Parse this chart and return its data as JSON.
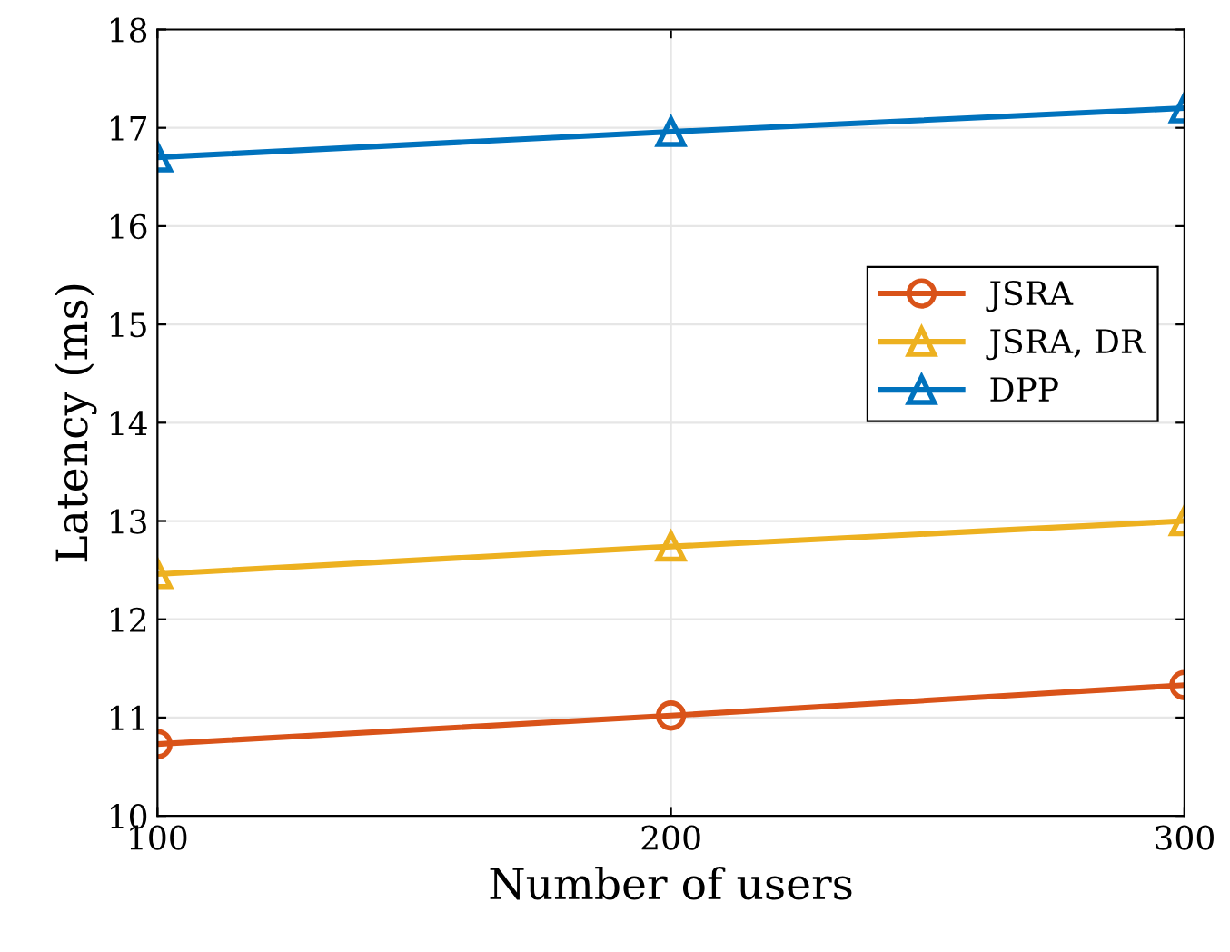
{
  "chart_data": {
    "type": "line",
    "xlabel": "Number of users",
    "ylabel": "Latency (ms)",
    "x": [
      100,
      200,
      300
    ],
    "series": [
      {
        "name": "JSRA",
        "color": "#d95319",
        "values": [
          10.73,
          11.02,
          11.33
        ],
        "marker": "circle"
      },
      {
        "name": "JSRA, DR",
        "color": "#edb120",
        "values": [
          12.46,
          12.74,
          13.0
        ],
        "marker": "triangle"
      },
      {
        "name": "DPP",
        "color": "#0072bd",
        "values": [
          16.7,
          16.96,
          17.2
        ],
        "marker": "triangle"
      }
    ],
    "xlim": [
      100,
      300
    ],
    "xticks": [
      100,
      200,
      300
    ],
    "ylim": [
      10,
      18
    ],
    "yticks": [
      10,
      11,
      12,
      13,
      14,
      15,
      16,
      17,
      18
    ],
    "grid": true,
    "legend": "right",
    "line_style": "solid"
  }
}
